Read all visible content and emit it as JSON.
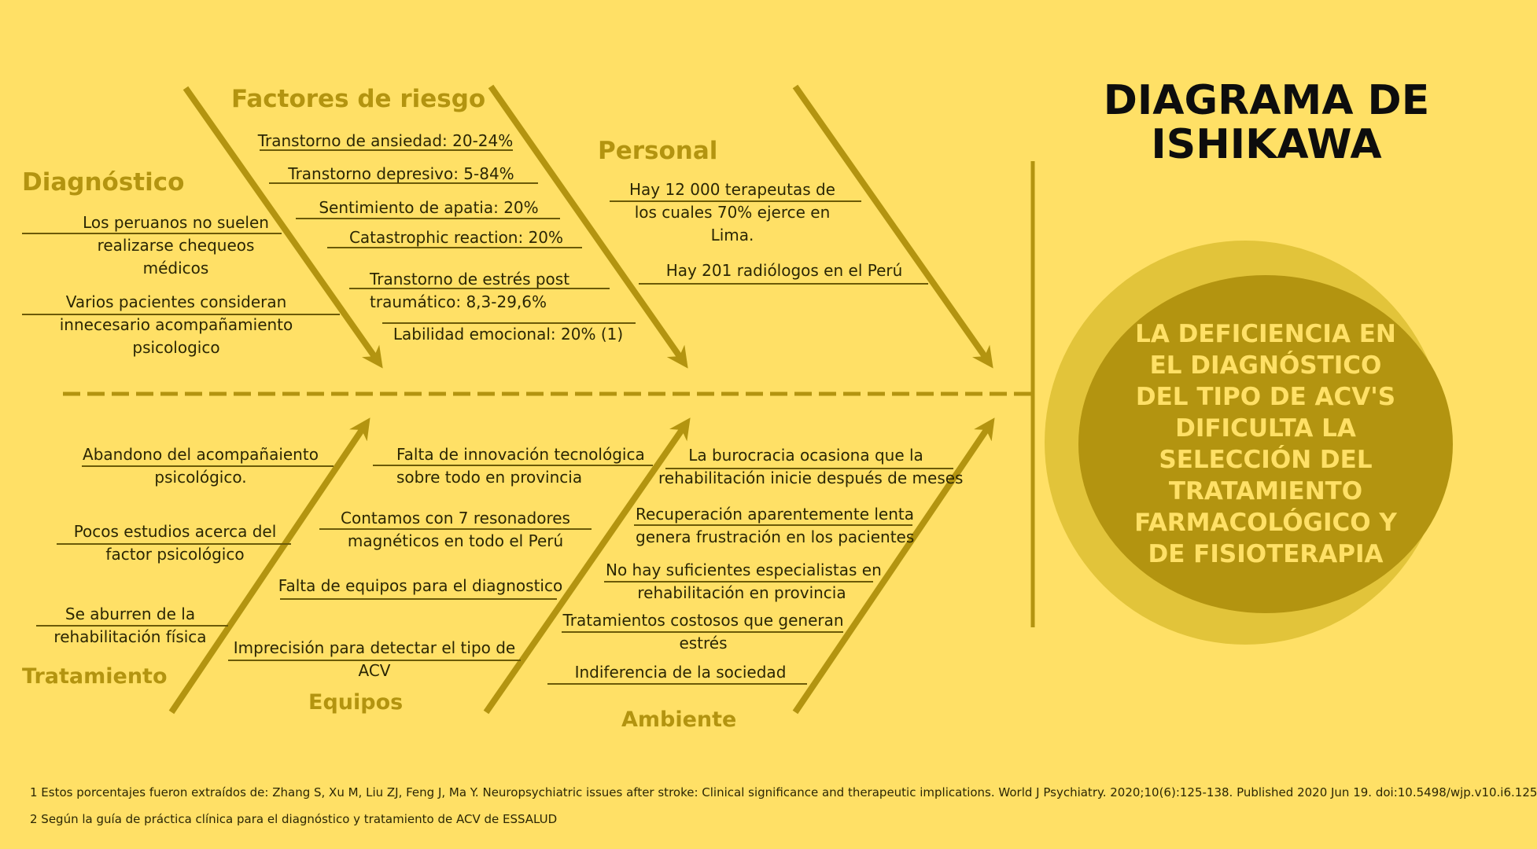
{
  "title": "DIAGRAMA DE ISHIKAWA",
  "effect": "LA DEFICIENCIA EN EL DIAGNÓSTICO DEL TIPO DE ACV'S DIFICULTA LA SELECCIÓN DEL TRATAMIENTO FARMACOLÓGICO Y DE FISIOTERAPIA",
  "categories": {
    "diagnostico": "Diagnóstico",
    "factores": "Factores de riesgo",
    "personal": "Personal",
    "tratamiento": "Tratamiento",
    "equipos": "Equipos",
    "ambiente": "Ambiente"
  },
  "causes": {
    "diagnostico": [
      "Los peruanos no suelen\nrealizarse chequeos\nmédicos",
      "Varios pacientes consideran\ninnecesario acompañamiento\npsicologico"
    ],
    "factores": [
      "Transtorno de ansiedad: 20-24%",
      "Transtorno depresivo: 5-84%",
      "Sentimiento de apatia: 20%",
      "Catastrophic reaction: 20%",
      "Transtorno de estrés post\ntraumático: 8,3-29,6%",
      "Labilidad emocional: 20% (1)"
    ],
    "personal": [
      "Hay 12 000 terapeutas de\nlos cuales 70% ejerce en\nLima.",
      "Hay 201 radiólogos en el Perú"
    ],
    "tratamiento": [
      "Abandono del acompañaiento\npsicológico.",
      "Pocos estudios acerca del\nfactor psicológico",
      "Se aburren de la\nrehabilitación física"
    ],
    "equipos": [
      "Falta de innovación tecnológica\nsobre todo en provincia",
      "Contamos con 7 resonadores\nmagnéticos en todo el Perú",
      "Falta de equipos para el diagnostico",
      "Imprecisión para detectar el tipo de\nACV"
    ],
    "ambiente": [
      "La burocracia ocasiona que la\nrehabilitación inicie después de meses",
      "Recuperación aparentemente lenta\ngenera frustración en los pacientes",
      "No hay suficientes especialistas en\nrehabilitación en provincia",
      "Tratamientos costosos que generan\nestrés",
      "Indiferencia de la sociedad"
    ]
  },
  "footnotes": [
    "1 Estos porcentajes fueron extraídos de: Zhang S, Xu M, Liu ZJ, Feng J, Ma Y. Neuropsychiatric issues after stroke: Clinical significance and therapeutic implications. World J Psychiatry. 2020;10(6):125-138. Published 2020 Jun 19. doi:10.5498/wjp.v10.i6.125",
    "2 Según la guía de práctica clínica para el diagnóstico y tratamiento de ACV de ESSALUD"
  ],
  "colors": {
    "background": "#FFE066",
    "accent": "#B39410",
    "outer_circle": "#E2C43A",
    "effect_text": "#FFE066",
    "text": "#2b2604"
  }
}
